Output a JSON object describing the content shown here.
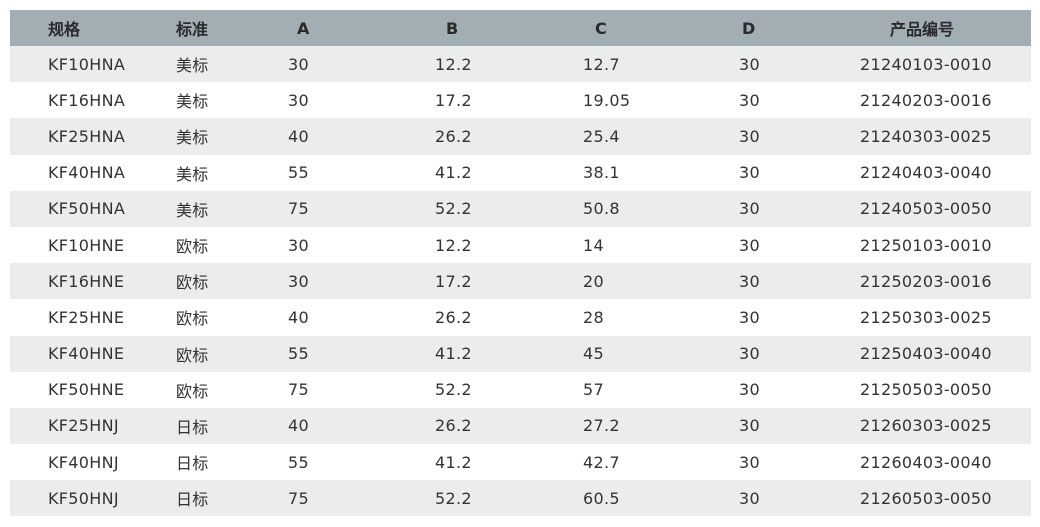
{
  "table": {
    "headers": [
      "规格",
      "标准",
      "A",
      "B",
      "C",
      "D",
      "产品编号"
    ],
    "rows": [
      [
        "KF10HNA",
        "美标",
        "30",
        "12.2",
        "12.7",
        "30",
        "21240103-0010"
      ],
      [
        "KF16HNA",
        "美标",
        "30",
        "17.2",
        "19.05",
        "30",
        "21240203-0016"
      ],
      [
        "KF25HNA",
        "美标",
        "40",
        "26.2",
        "25.4",
        "30",
        "21240303-0025"
      ],
      [
        "KF40HNA",
        "美标",
        "55",
        "41.2",
        "38.1",
        "30",
        "21240403-0040"
      ],
      [
        "KF50HNA",
        "美标",
        "75",
        "52.2",
        "50.8",
        "30",
        "21240503-0050"
      ],
      [
        "KF10HNE",
        "欧标",
        "30",
        "12.2",
        "14",
        "30",
        "21250103-0010"
      ],
      [
        "KF16HNE",
        "欧标",
        "30",
        "17.2",
        "20",
        "30",
        "21250203-0016"
      ],
      [
        "KF25HNE",
        "欧标",
        "40",
        "26.2",
        "28",
        "30",
        "21250303-0025"
      ],
      [
        "KF40HNE",
        "欧标",
        "55",
        "41.2",
        "45",
        "30",
        "21250403-0040"
      ],
      [
        "KF50HNE",
        "欧标",
        "75",
        "52.2",
        "57",
        "30",
        "21250503-0050"
      ],
      [
        "KF25HNJ",
        "日标",
        "40",
        "26.2",
        "27.2",
        "30",
        "21260303-0025"
      ],
      [
        "KF40HNJ",
        "日标",
        "55",
        "41.2",
        "42.7",
        "30",
        "21260403-0040"
      ],
      [
        "KF50HNJ",
        "日标",
        "75",
        "52.2",
        "60.5",
        "30",
        "21260503-0050"
      ]
    ]
  },
  "colors": {
    "header_bg": "#a3adb4",
    "stripe_bg": "#ebecec",
    "text": "#333333"
  }
}
